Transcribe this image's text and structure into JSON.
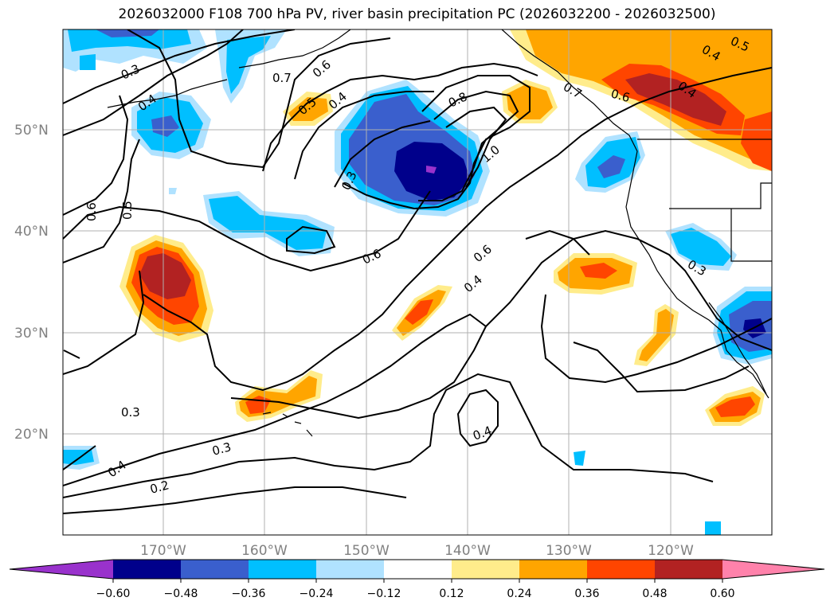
{
  "title": "2026032000 F108 700 hPa PV, river basin precipitation PC (2026032200 - 2026032500)",
  "lat_labels": [
    "50°N",
    "40°N",
    "30°N",
    "20°N"
  ],
  "lon_labels": [
    "170°W",
    "160°W",
    "150°W",
    "140°W",
    "130°W",
    "120°W"
  ],
  "contour_labels": [
    "0.3",
    "0.4",
    "0.7",
    "0.6",
    "0.5",
    "0.4",
    "0.8",
    "1.0",
    "0.3",
    "0.6",
    "0.5",
    "0.6",
    "0.6",
    "0.4",
    "0.3",
    "0.4",
    "0.2",
    "0.3",
    "0.4",
    "0.4",
    "0.6",
    "0.4",
    "0.5",
    "0.3",
    "0.7"
  ],
  "colorbar": {
    "ticks": [
      "−0.60",
      "−0.48",
      "−0.36",
      "−0.24",
      "−0.12",
      "0.12",
      "0.24",
      "0.36",
      "0.48",
      "0.60"
    ],
    "colors": [
      "#9932cc",
      "#00008b",
      "#3a5fcd",
      "#00bfff",
      "#b0e2ff",
      "#ffffff",
      "#ffec8b",
      "#ffa500",
      "#ff4500",
      "#b22222",
      "#ff82ab"
    ]
  }
}
